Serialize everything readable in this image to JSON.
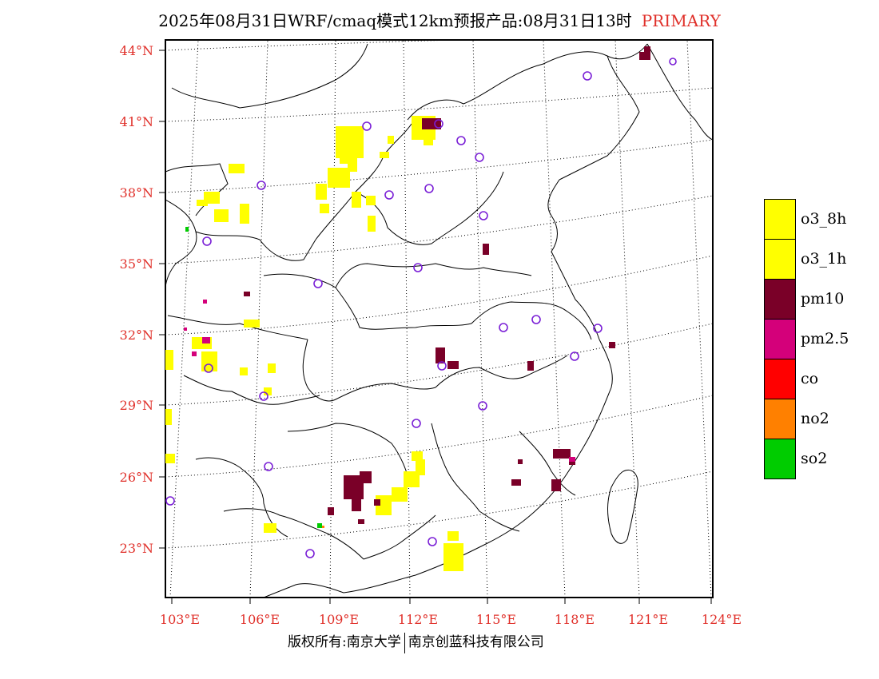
{
  "header": {
    "title": "2025年08月31日WRF/cmaq模式12km预报产品:08月31日13时",
    "tag": "PRIMARY"
  },
  "map": {
    "lat_labels": [
      "44°N",
      "41°N",
      "38°N",
      "35°N",
      "32°N",
      "29°N",
      "26°N",
      "23°N"
    ],
    "lon_labels": [
      "103°E",
      "106°E",
      "109°E",
      "112°E",
      "115°E",
      "118°E",
      "121°E",
      "124°E"
    ]
  },
  "legend": {
    "items": [
      {
        "label": "o3_8h",
        "color": "#ffff00"
      },
      {
        "label": "o3_1h",
        "color": "#ffff00"
      },
      {
        "label": "pm10",
        "color": "#7a0028"
      },
      {
        "label": "pm2.5",
        "color": "#d4007a"
      },
      {
        "label": "co",
        "color": "#ff0000"
      },
      {
        "label": "no2",
        "color": "#ff8000"
      },
      {
        "label": "so2",
        "color": "#00cc00"
      }
    ]
  },
  "footer": {
    "left": "版权所有:南京大学",
    "right": "南京创蓝科技有限公司"
  }
}
